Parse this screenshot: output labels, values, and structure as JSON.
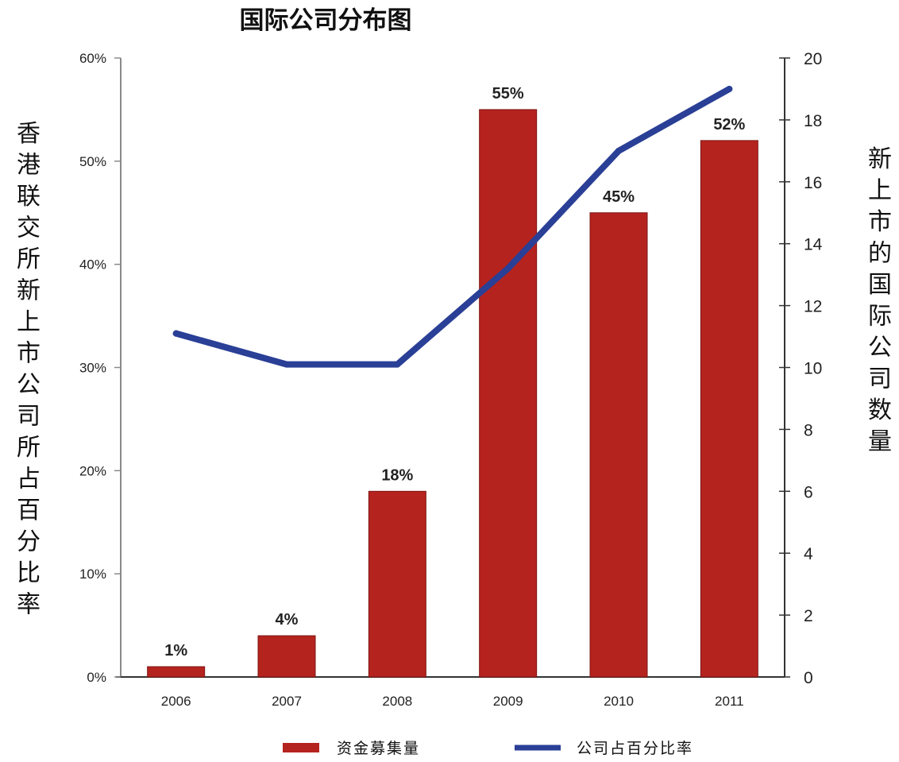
{
  "chart_data": {
    "type": "bar",
    "title": "国际公司分布图",
    "categories": [
      "2006",
      "2007",
      "2008",
      "2009",
      "2010",
      "2011"
    ],
    "series": [
      {
        "name": "资金募集量",
        "type": "bar",
        "axis": "left",
        "values": [
          1,
          4,
          18,
          55,
          45,
          52
        ],
        "data_labels": [
          "1%",
          "4%",
          "18%",
          "55%",
          "45%",
          "52%"
        ],
        "color": "#b5231f"
      },
      {
        "name": "公司占百分比率",
        "type": "line",
        "axis": "right",
        "values": [
          11.1,
          10.1,
          10.1,
          13.2,
          17,
          19
        ],
        "color": "#2a3f96"
      }
    ],
    "ylabel": "香港联交所新上市公司所占百分比率",
    "y2label": "新上市的国际公司数量",
    "ylim": [
      0,
      60
    ],
    "y2lim": [
      0,
      20
    ],
    "yticks": [
      "0%",
      "10%",
      "20%",
      "30%",
      "40%",
      "50%",
      "60%"
    ],
    "y2ticks": [
      "0",
      "2",
      "4",
      "6",
      "8",
      "10",
      "12",
      "14",
      "16",
      "18",
      "20"
    ],
    "legend_position": "bottom",
    "grid": false
  }
}
